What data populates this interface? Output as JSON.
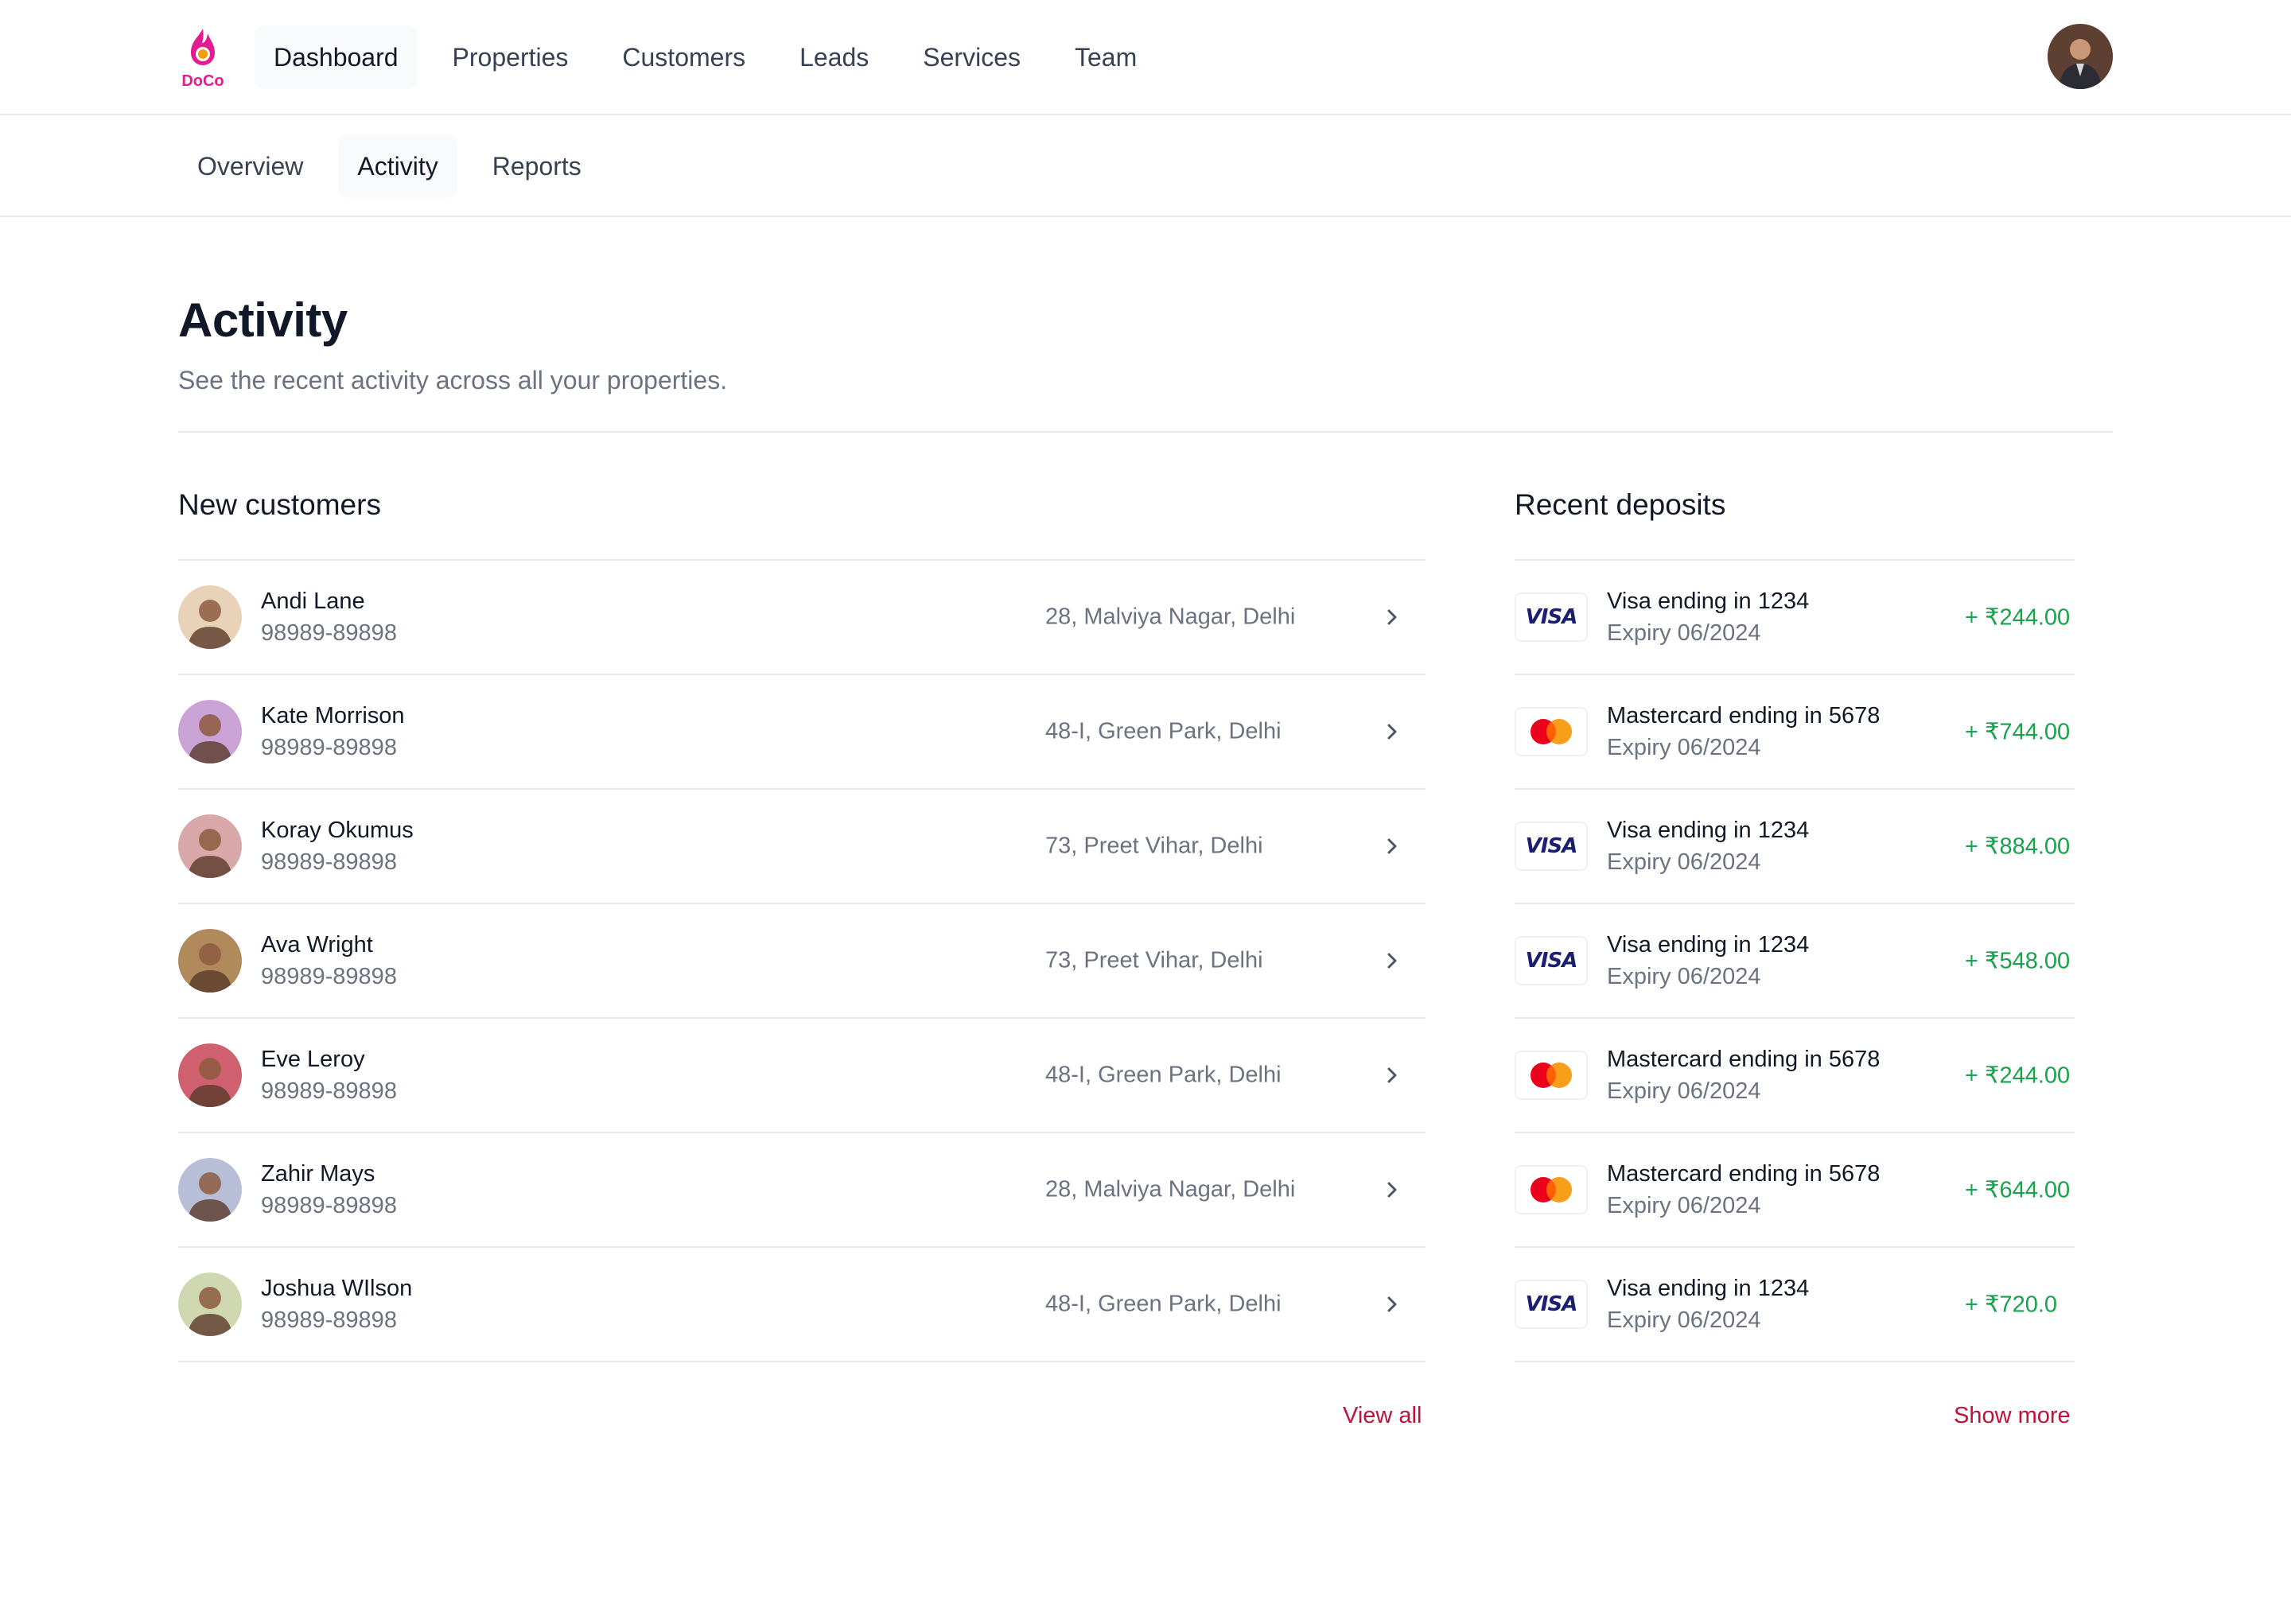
{
  "brand": {
    "name": "DoCo",
    "color": "#e11d8f"
  },
  "nav": {
    "items": [
      {
        "label": "Dashboard",
        "active": true
      },
      {
        "label": "Properties",
        "active": false
      },
      {
        "label": "Customers",
        "active": false
      },
      {
        "label": "Leads",
        "active": false
      },
      {
        "label": "Services",
        "active": false
      },
      {
        "label": "Team",
        "active": false
      }
    ]
  },
  "subnav": {
    "items": [
      {
        "label": "Overview",
        "active": false
      },
      {
        "label": "Activity",
        "active": true
      },
      {
        "label": "Reports",
        "active": false
      }
    ]
  },
  "header": {
    "title": "Activity",
    "subtitle": "See the recent activity across all your properties."
  },
  "customers": {
    "title": "New customers",
    "link_label": "View all",
    "rows": [
      {
        "name": "Andi Lane",
        "phone": "98989-89898",
        "address": "28, Malviya Nagar, Delhi",
        "avatar_color": "#e8d3b8"
      },
      {
        "name": "Kate Morrison",
        "phone": "98989-89898",
        "address": "48-I, Green Park, Delhi",
        "avatar_color": "#c9a3d6"
      },
      {
        "name": "Koray Okumus",
        "phone": "98989-89898",
        "address": "73, Preet Vihar, Delhi",
        "avatar_color": "#d9a8a8"
      },
      {
        "name": "Ava Wright",
        "phone": "98989-89898",
        "address": "73, Preet Vihar, Delhi",
        "avatar_color": "#b08a5a"
      },
      {
        "name": "Eve Leroy",
        "phone": "98989-89898",
        "address": "48-I, Green Park, Delhi",
        "avatar_color": "#d06070"
      },
      {
        "name": "Zahir Mays",
        "phone": "98989-89898",
        "address": "28, Malviya Nagar, Delhi",
        "avatar_color": "#b7bfd6"
      },
      {
        "name": "Joshua WIlson",
        "phone": "98989-89898",
        "address": "48-I, Green Park, Delhi",
        "avatar_color": "#cfd8b0"
      }
    ]
  },
  "deposits": {
    "title": "Recent deposits",
    "link_label": "Show more",
    "amount_color": "#16a34a",
    "rows": [
      {
        "brand": "visa",
        "title": "Visa ending in 1234",
        "expiry": "Expiry 06/2024",
        "amount": "+ ₹244.00"
      },
      {
        "brand": "mastercard",
        "title": "Mastercard ending in 5678",
        "expiry": "Expiry 06/2024",
        "amount": "+ ₹744.00"
      },
      {
        "brand": "visa",
        "title": "Visa ending in 1234",
        "expiry": "Expiry 06/2024",
        "amount": "+ ₹884.00"
      },
      {
        "brand": "visa",
        "title": "Visa ending in 1234",
        "expiry": "Expiry 06/2024",
        "amount": "+ ₹548.00"
      },
      {
        "brand": "mastercard",
        "title": "Mastercard ending in 5678",
        "expiry": "Expiry 06/2024",
        "amount": "+ ₹244.00"
      },
      {
        "brand": "mastercard",
        "title": "Mastercard ending in 5678",
        "expiry": "Expiry 06/2024",
        "amount": "+ ₹644.00"
      },
      {
        "brand": "visa",
        "title": "Visa ending in 1234",
        "expiry": "Expiry 06/2024",
        "amount": "+ ₹720.0"
      }
    ]
  },
  "visa_label": "VISA"
}
